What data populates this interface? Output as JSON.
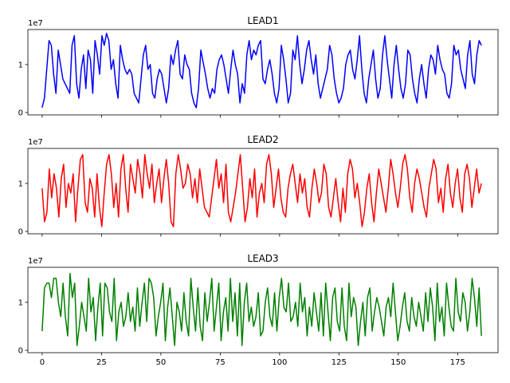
{
  "chart_data": [
    {
      "type": "line",
      "title": "LEAD1",
      "y_offset_text": "1e7",
      "color": "#0000ff",
      "x_start": 0,
      "x_end": 185,
      "xlim": [
        -6,
        192
      ],
      "ylim": [
        -0.05,
        1.73
      ],
      "xticks": [
        0,
        25,
        50,
        75,
        100,
        125,
        150,
        175
      ],
      "xtick_labels_visible": false,
      "yticks": [
        0,
        1
      ],
      "ytick_labels": [
        "0",
        "1"
      ],
      "values": [
        0.1,
        0.3,
        0.9,
        1.5,
        1.4,
        0.8,
        0.4,
        1.3,
        1.0,
        0.7,
        0.6,
        0.5,
        0.4,
        1.4,
        1.6,
        0.6,
        0.3,
        0.9,
        1.2,
        0.5,
        1.3,
        1.1,
        0.4,
        1.5,
        1.2,
        0.8,
        1.6,
        1.4,
        1.65,
        1.5,
        0.9,
        1.1,
        0.6,
        0.3,
        1.4,
        1.1,
        0.9,
        0.8,
        0.9,
        0.8,
        0.4,
        0.3,
        0.2,
        0.7,
        1.2,
        1.4,
        0.9,
        1.0,
        0.4,
        0.3,
        0.7,
        0.9,
        0.8,
        0.5,
        0.2,
        0.5,
        1.2,
        1.0,
        1.3,
        1.5,
        0.8,
        0.7,
        1.2,
        1.0,
        0.9,
        0.4,
        0.2,
        0.1,
        0.5,
        1.3,
        1.05,
        0.8,
        0.5,
        0.3,
        0.5,
        0.4,
        0.9,
        1.1,
        1.2,
        1.0,
        0.7,
        0.4,
        0.9,
        1.3,
        1.0,
        0.8,
        0.2,
        0.6,
        0.4,
        1.2,
        1.5,
        1.1,
        1.3,
        1.2,
        1.4,
        1.5,
        0.7,
        0.6,
        0.9,
        1.1,
        0.8,
        0.4,
        0.2,
        0.5,
        1.4,
        1.1,
        0.7,
        0.2,
        0.4,
        1.3,
        1.1,
        1.6,
        1.0,
        0.6,
        0.9,
        1.3,
        1.5,
        1.1,
        0.8,
        1.2,
        0.6,
        0.3,
        0.5,
        0.7,
        0.9,
        1.4,
        1.2,
        0.7,
        0.4,
        0.2,
        0.3,
        0.5,
        1.0,
        1.2,
        1.3,
        0.9,
        0.7,
        1.1,
        1.6,
        0.9,
        0.4,
        0.2,
        0.7,
        1.0,
        1.3,
        0.7,
        0.3,
        0.5,
        1.2,
        1.6,
        1.1,
        0.7,
        0.3,
        1.0,
        1.4,
        0.9,
        0.5,
        0.3,
        0.6,
        1.3,
        1.2,
        0.7,
        0.4,
        0.2,
        0.7,
        1.0,
        0.6,
        0.3,
        0.9,
        1.2,
        1.1,
        0.8,
        1.4,
        1.1,
        0.9,
        0.8,
        0.4,
        0.3,
        0.6,
        1.4,
        1.2,
        1.3,
        0.9,
        0.7,
        0.5,
        1.2,
        1.5,
        0.8,
        0.6,
        1.2,
        1.5,
        1.4
      ]
    },
    {
      "type": "line",
      "title": "LEAD2",
      "y_offset_text": "1e7",
      "color": "#ff0000",
      "x_start": 0,
      "x_end": 185,
      "xlim": [
        -6,
        192
      ],
      "ylim": [
        -0.05,
        1.73
      ],
      "xticks": [
        0,
        25,
        50,
        75,
        100,
        125,
        150,
        175
      ],
      "xtick_labels_visible": false,
      "yticks": [
        0,
        1
      ],
      "ytick_labels": [
        "0",
        "1"
      ],
      "values": [
        0.9,
        0.2,
        0.4,
        1.3,
        0.7,
        1.2,
        0.9,
        0.3,
        1.1,
        1.4,
        0.5,
        1.0,
        0.8,
        1.2,
        0.2,
        0.9,
        1.5,
        1.6,
        0.6,
        0.4,
        1.1,
        0.9,
        0.3,
        1.2,
        0.5,
        0.1,
        0.8,
        1.4,
        1.6,
        1.2,
        0.5,
        1.0,
        0.3,
        1.3,
        1.6,
        0.9,
        0.4,
        1.4,
        1.1,
        0.8,
        1.5,
        1.2,
        0.7,
        1.6,
        1.2,
        0.9,
        1.4,
        0.6,
        1.0,
        1.3,
        0.6,
        1.1,
        1.5,
        1.0,
        0.2,
        0.1,
        1.2,
        1.6,
        1.3,
        0.9,
        1.0,
        1.4,
        1.2,
        0.7,
        1.1,
        0.6,
        1.3,
        0.9,
        0.5,
        0.4,
        0.3,
        0.7,
        1.1,
        1.5,
        0.9,
        1.2,
        0.6,
        1.4,
        0.4,
        0.2,
        0.5,
        0.8,
        1.2,
        1.6,
        0.9,
        0.2,
        0.5,
        1.1,
        0.7,
        1.3,
        0.3,
        0.8,
        1.0,
        0.6,
        1.4,
        1.6,
        1.2,
        0.5,
        0.9,
        1.3,
        0.7,
        0.4,
        0.3,
        0.9,
        1.2,
        1.4,
        1.0,
        0.6,
        1.2,
        0.8,
        1.1,
        0.5,
        0.3,
        0.9,
        1.3,
        1.0,
        0.6,
        0.8,
        1.4,
        1.2,
        0.5,
        0.3,
        0.7,
        1.1,
        0.6,
        0.2,
        0.9,
        0.4,
        1.2,
        1.5,
        1.3,
        0.7,
        1.0,
        0.6,
        0.1,
        0.4,
        0.9,
        1.2,
        0.6,
        0.2,
        0.8,
        1.3,
        1.0,
        0.7,
        0.4,
        0.9,
        1.5,
        1.2,
        0.8,
        0.5,
        0.9,
        1.4,
        1.6,
        1.3,
        0.7,
        0.4,
        1.0,
        1.3,
        1.1,
        0.8,
        0.5,
        0.3,
        0.9,
        1.2,
        1.5,
        1.3,
        0.6,
        0.9,
        0.4,
        1.1,
        1.4,
        0.8,
        0.5,
        1.0,
        1.3,
        0.7,
        0.4,
        1.2,
        1.4,
        1.1,
        0.5,
        0.9,
        1.3,
        0.8,
        1.0
      ]
    },
    {
      "type": "line",
      "title": "LEAD3",
      "y_offset_text": "1e7",
      "color": "#008000",
      "x_start": 0,
      "x_end": 185,
      "xlim": [
        -6,
        192
      ],
      "ylim": [
        -0.05,
        1.73
      ],
      "xticks": [
        0,
        25,
        50,
        75,
        100,
        125,
        150,
        175
      ],
      "xtick_labels": [
        "0",
        "25",
        "50",
        "75",
        "100",
        "125",
        "150",
        "175"
      ],
      "yticks": [
        0,
        1
      ],
      "ytick_labels": [
        "0",
        "1"
      ],
      "values": [
        0.4,
        1.3,
        1.4,
        1.4,
        1.1,
        1.5,
        1.5,
        1.0,
        0.7,
        1.4,
        0.7,
        0.3,
        1.6,
        1.1,
        1.4,
        0.1,
        0.5,
        1.0,
        0.7,
        0.4,
        1.5,
        0.8,
        1.1,
        0.2,
        0.9,
        1.4,
        0.3,
        1.4,
        1.3,
        0.8,
        0.6,
        1.5,
        0.2,
        0.8,
        1.0,
        0.5,
        0.7,
        1.2,
        0.6,
        0.9,
        0.4,
        1.3,
        0.5,
        1.0,
        1.4,
        0.6,
        1.5,
        1.4,
        1.1,
        0.3,
        0.7,
        1.0,
        1.4,
        0.2,
        0.9,
        1.3,
        0.7,
        0.1,
        1.0,
        0.8,
        0.4,
        1.2,
        0.6,
        0.3,
        1.5,
        0.9,
        0.4,
        1.3,
        0.5,
        0.2,
        1.2,
        0.6,
        1.0,
        1.5,
        0.4,
        0.9,
        1.4,
        0.2,
        0.8,
        1.1,
        0.4,
        1.5,
        0.6,
        1.2,
        0.3,
        1.4,
        0.1,
        1.0,
        1.4,
        0.6,
        0.9,
        0.5,
        0.7,
        1.2,
        0.3,
        0.4,
        1.0,
        1.3,
        0.7,
        0.5,
        1.2,
        0.4,
        1.1,
        1.5,
        0.9,
        0.8,
        1.4,
        0.6,
        0.7,
        1.0,
        0.5,
        1.4,
        0.8,
        1.1,
        0.3,
        0.9,
        0.5,
        1.2,
        0.8,
        0.4,
        1.2,
        0.3,
        1.4,
        0.8,
        0.2,
        1.1,
        1.3,
        0.6,
        0.4,
        1.3,
        0.5,
        0.2,
        1.4,
        0.7,
        1.1,
        0.9,
        0.1,
        0.6,
        1.0,
        0.3,
        1.1,
        1.3,
        0.4,
        0.8,
        1.1,
        0.9,
        0.6,
        0.3,
        0.9,
        1.1,
        0.7,
        1.4,
        0.8,
        0.2,
        0.5,
        0.9,
        1.2,
        0.6,
        0.4,
        1.1,
        0.7,
        0.5,
        1.0,
        0.7,
        0.4,
        1.2,
        0.6,
        1.3,
        0.9,
        0.2,
        1.4,
        0.6,
        0.9,
        0.3,
        1.4,
        0.9,
        0.5,
        0.4,
        1.5,
        0.8,
        0.6,
        1.2,
        1.0,
        0.4,
        0.8,
        1.5,
        1.1,
        0.5,
        1.3,
        0.3
      ]
    }
  ]
}
